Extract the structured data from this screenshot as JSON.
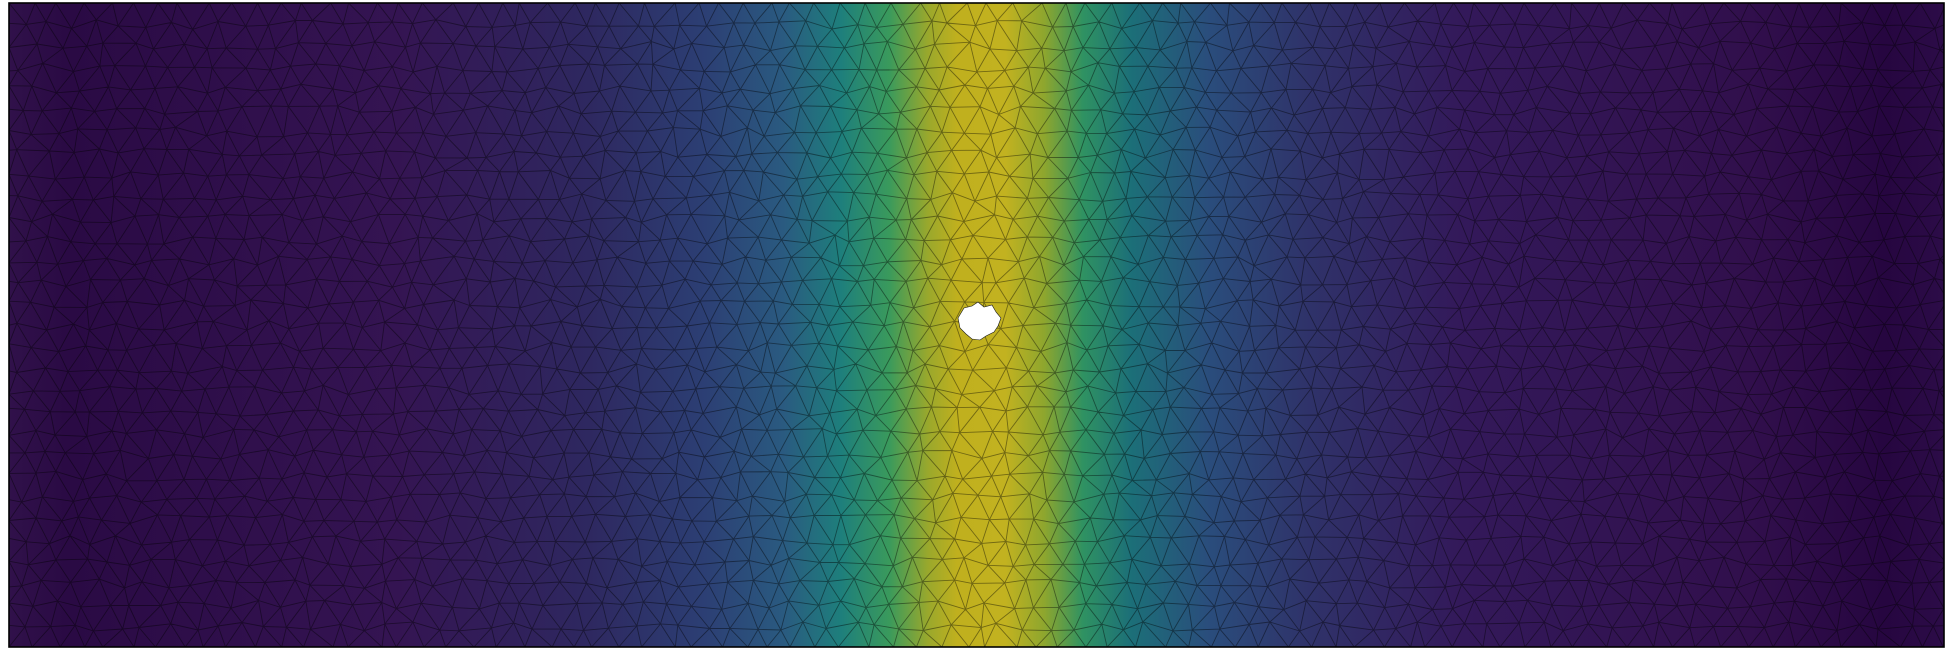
{
  "figure": {
    "kind": "finite-element mesh with scalar field",
    "colormap": [
      "#440154",
      "#3b528b",
      "#21918c",
      "#5ec962",
      "#bddf26",
      "#c8b51f"
    ],
    "field_peak_fraction_of_width": 0.505,
    "mesh_line_color": "#000000",
    "frame_color": "#000000",
    "hole_color": "#ffffff",
    "background": "#ffffff"
  }
}
